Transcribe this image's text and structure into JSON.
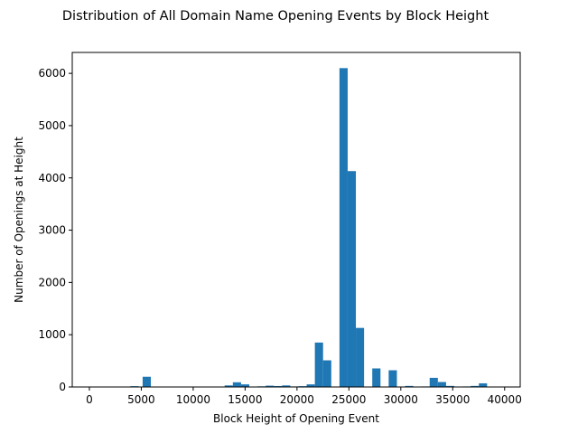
{
  "chart_data": {
    "type": "bar",
    "title": "Distribution of All Domain Name Opening Events by Block Height",
    "xlabel": "Block Height of Opening Event",
    "ylabel": "Number of Openings at Height",
    "xlim": [
      -1650,
      41500
    ],
    "ylim": [
      0,
      6400
    ],
    "xticks": [
      0,
      5000,
      10000,
      15000,
      20000,
      25000,
      30000,
      35000,
      40000
    ],
    "yticks": [
      0,
      1000,
      2000,
      3000,
      4000,
      5000,
      6000
    ],
    "grid": false,
    "legend": "none",
    "color": "#1f77b4",
    "bin_width": 790,
    "bins": [
      {
        "x": 0,
        "value": 0
      },
      {
        "x": 3950,
        "value": 15
      },
      {
        "x": 5130,
        "value": 195
      },
      {
        "x": 13030,
        "value": 30
      },
      {
        "x": 13820,
        "value": 90
      },
      {
        "x": 14610,
        "value": 50
      },
      {
        "x": 15400,
        "value": 8
      },
      {
        "x": 16190,
        "value": 12
      },
      {
        "x": 16980,
        "value": 25
      },
      {
        "x": 17770,
        "value": 18
      },
      {
        "x": 18560,
        "value": 30
      },
      {
        "x": 19350,
        "value": 10
      },
      {
        "x": 20140,
        "value": 15
      },
      {
        "x": 20930,
        "value": 50
      },
      {
        "x": 21720,
        "value": 850
      },
      {
        "x": 22510,
        "value": 510
      },
      {
        "x": 23300,
        "value": 0
      },
      {
        "x": 24090,
        "value": 6100
      },
      {
        "x": 24880,
        "value": 4130
      },
      {
        "x": 25670,
        "value": 1130
      },
      {
        "x": 26460,
        "value": 0
      },
      {
        "x": 27250,
        "value": 355
      },
      {
        "x": 28040,
        "value": 0
      },
      {
        "x": 28830,
        "value": 320
      },
      {
        "x": 29620,
        "value": 0
      },
      {
        "x": 30410,
        "value": 20
      },
      {
        "x": 31200,
        "value": 5
      },
      {
        "x": 31990,
        "value": 10
      },
      {
        "x": 32780,
        "value": 175
      },
      {
        "x": 33570,
        "value": 95
      },
      {
        "x": 34360,
        "value": 20
      },
      {
        "x": 35150,
        "value": 5
      },
      {
        "x": 35940,
        "value": 10
      },
      {
        "x": 36730,
        "value": 20
      },
      {
        "x": 37520,
        "value": 70
      }
    ]
  }
}
